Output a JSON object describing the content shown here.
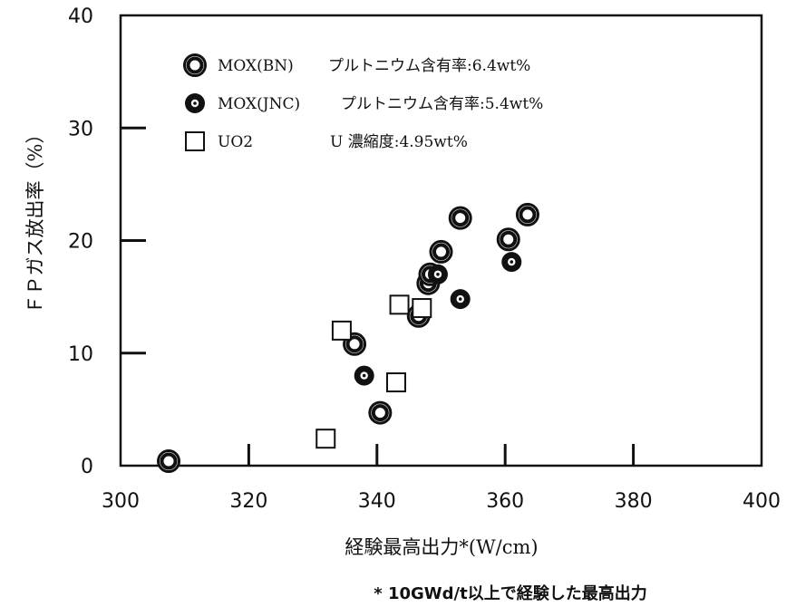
{
  "chart_data": {
    "type": "scatter",
    "xlabel": "経験最高出力*(W/cm)",
    "ylabel": "ＦＰガス放出率（%）",
    "footnote": "* 10GWd/t以上で経験した最高出力",
    "xlim": [
      300,
      400
    ],
    "ylim": [
      0,
      40
    ],
    "x_ticks": [
      "300",
      "320",
      "340",
      "360",
      "380",
      "400"
    ],
    "y_ticks": [
      "0",
      "10",
      "20",
      "30",
      "40"
    ],
    "legend_position": "top-left",
    "grid": false,
    "series": [
      {
        "name": "MOX(BN)",
        "legend_desc": "プルトニウム含有率:6.4wt%",
        "marker": "large-ring",
        "points": [
          {
            "x": 307.5,
            "y": 0.4
          },
          {
            "x": 336.5,
            "y": 10.8
          },
          {
            "x": 340.5,
            "y": 4.7
          },
          {
            "x": 346.5,
            "y": 13.3
          },
          {
            "x": 348,
            "y": 16.2
          },
          {
            "x": 348.3,
            "y": 17.0
          },
          {
            "x": 350,
            "y": 19.0
          },
          {
            "x": 353,
            "y": 22.0
          },
          {
            "x": 360.5,
            "y": 20.1
          },
          {
            "x": 363.5,
            "y": 22.3
          }
        ]
      },
      {
        "name": "MOX(JNC)",
        "legend_desc": "プルトニウム含有率:5.4wt%",
        "marker": "solid-ring",
        "points": [
          {
            "x": 338,
            "y": 8.0
          },
          {
            "x": 349.5,
            "y": 17.0
          },
          {
            "x": 353,
            "y": 14.8
          },
          {
            "x": 361,
            "y": 18.1
          }
        ]
      },
      {
        "name": "UO2",
        "legend_desc": "U 濃縮度:4.95wt%",
        "marker": "square",
        "points": [
          {
            "x": 332,
            "y": 2.4
          },
          {
            "x": 334.5,
            "y": 12.0
          },
          {
            "x": 343,
            "y": 7.4
          },
          {
            "x": 343.5,
            "y": 14.3
          },
          {
            "x": 347,
            "y": 14.0
          }
        ]
      }
    ]
  }
}
